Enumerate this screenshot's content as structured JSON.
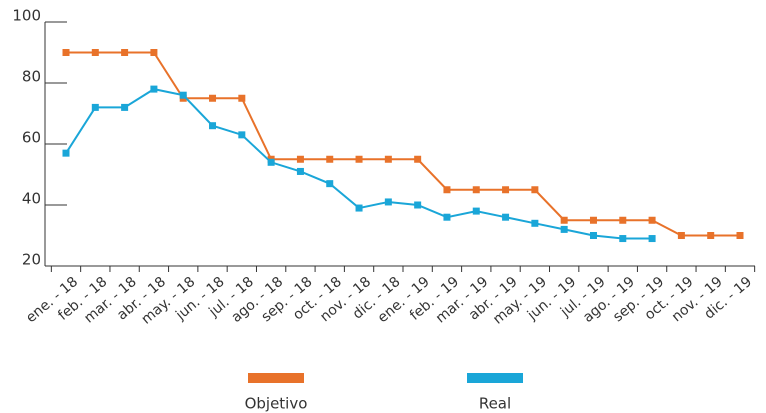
{
  "chart_data": {
    "type": "line",
    "categories": [
      "ene. - 18",
      "feb. - 18",
      "mar. - 18",
      "abr. - 18",
      "may. - 18",
      "jun. - 18",
      "jul. - 18",
      "ago. - 18",
      "sep. - 18",
      "oct. - 18",
      "nov. - 18",
      "dic. - 18",
      "ene. - 19",
      "feb. - 19",
      "mar. - 19",
      "abr. - 19",
      "may. - 19",
      "jun. - 19",
      "jul. - 19",
      "ago. - 19",
      "sep. - 19",
      "oct. - 19",
      "nov. - 19",
      "dic. - 19"
    ],
    "series": [
      {
        "name": "Objetivo",
        "color": "#e8722a",
        "values": [
          90,
          90,
          90,
          90,
          75,
          75,
          75,
          55,
          55,
          55,
          55,
          55,
          55,
          45,
          45,
          45,
          45,
          35,
          35,
          35,
          35,
          30,
          30,
          30
        ]
      },
      {
        "name": "Real",
        "color": "#1aa6d8",
        "values": [
          57,
          72,
          72,
          78,
          76,
          66,
          63,
          54,
          51,
          47,
          39,
          41,
          40,
          36,
          38,
          36,
          34,
          32,
          30,
          29,
          29,
          null,
          null,
          null
        ]
      }
    ],
    "ylim": [
      20,
      100
    ],
    "yticks": [
      20,
      40,
      60,
      80,
      100
    ]
  }
}
